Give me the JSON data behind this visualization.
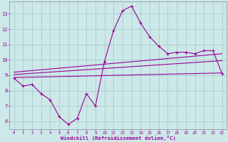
{
  "xlabel": "Windchill (Refroidissement éolien,°C)",
  "bg_color": "#cce8e8",
  "line_color": "#990099",
  "grid_color": "#aacccc",
  "xlim": [
    -0.5,
    23.5
  ],
  "ylim": [
    5.5,
    13.8
  ],
  "xticks": [
    0,
    1,
    2,
    3,
    4,
    5,
    6,
    7,
    8,
    9,
    10,
    11,
    12,
    13,
    14,
    15,
    16,
    17,
    18,
    19,
    20,
    21,
    22,
    23
  ],
  "yticks": [
    6,
    7,
    8,
    9,
    10,
    11,
    12,
    13
  ],
  "line1_x": [
    0,
    1,
    2,
    3,
    4,
    5,
    6,
    7,
    8,
    9,
    10,
    11,
    12,
    13,
    14,
    15,
    16,
    17,
    18,
    19,
    20,
    21,
    22,
    23
  ],
  "line1_y": [
    8.8,
    8.3,
    8.4,
    7.8,
    7.4,
    6.3,
    5.8,
    6.2,
    7.8,
    7.0,
    9.9,
    11.9,
    13.2,
    13.5,
    12.4,
    11.5,
    10.9,
    10.4,
    10.5,
    10.5,
    10.4,
    10.6,
    10.6,
    9.1
  ],
  "line2_x": [
    0,
    23
  ],
  "line2_y": [
    8.85,
    9.15
  ],
  "line3_x": [
    0,
    23
  ],
  "line3_y": [
    9.05,
    9.95
  ],
  "line4_x": [
    0,
    23
  ],
  "line4_y": [
    9.2,
    10.4
  ]
}
